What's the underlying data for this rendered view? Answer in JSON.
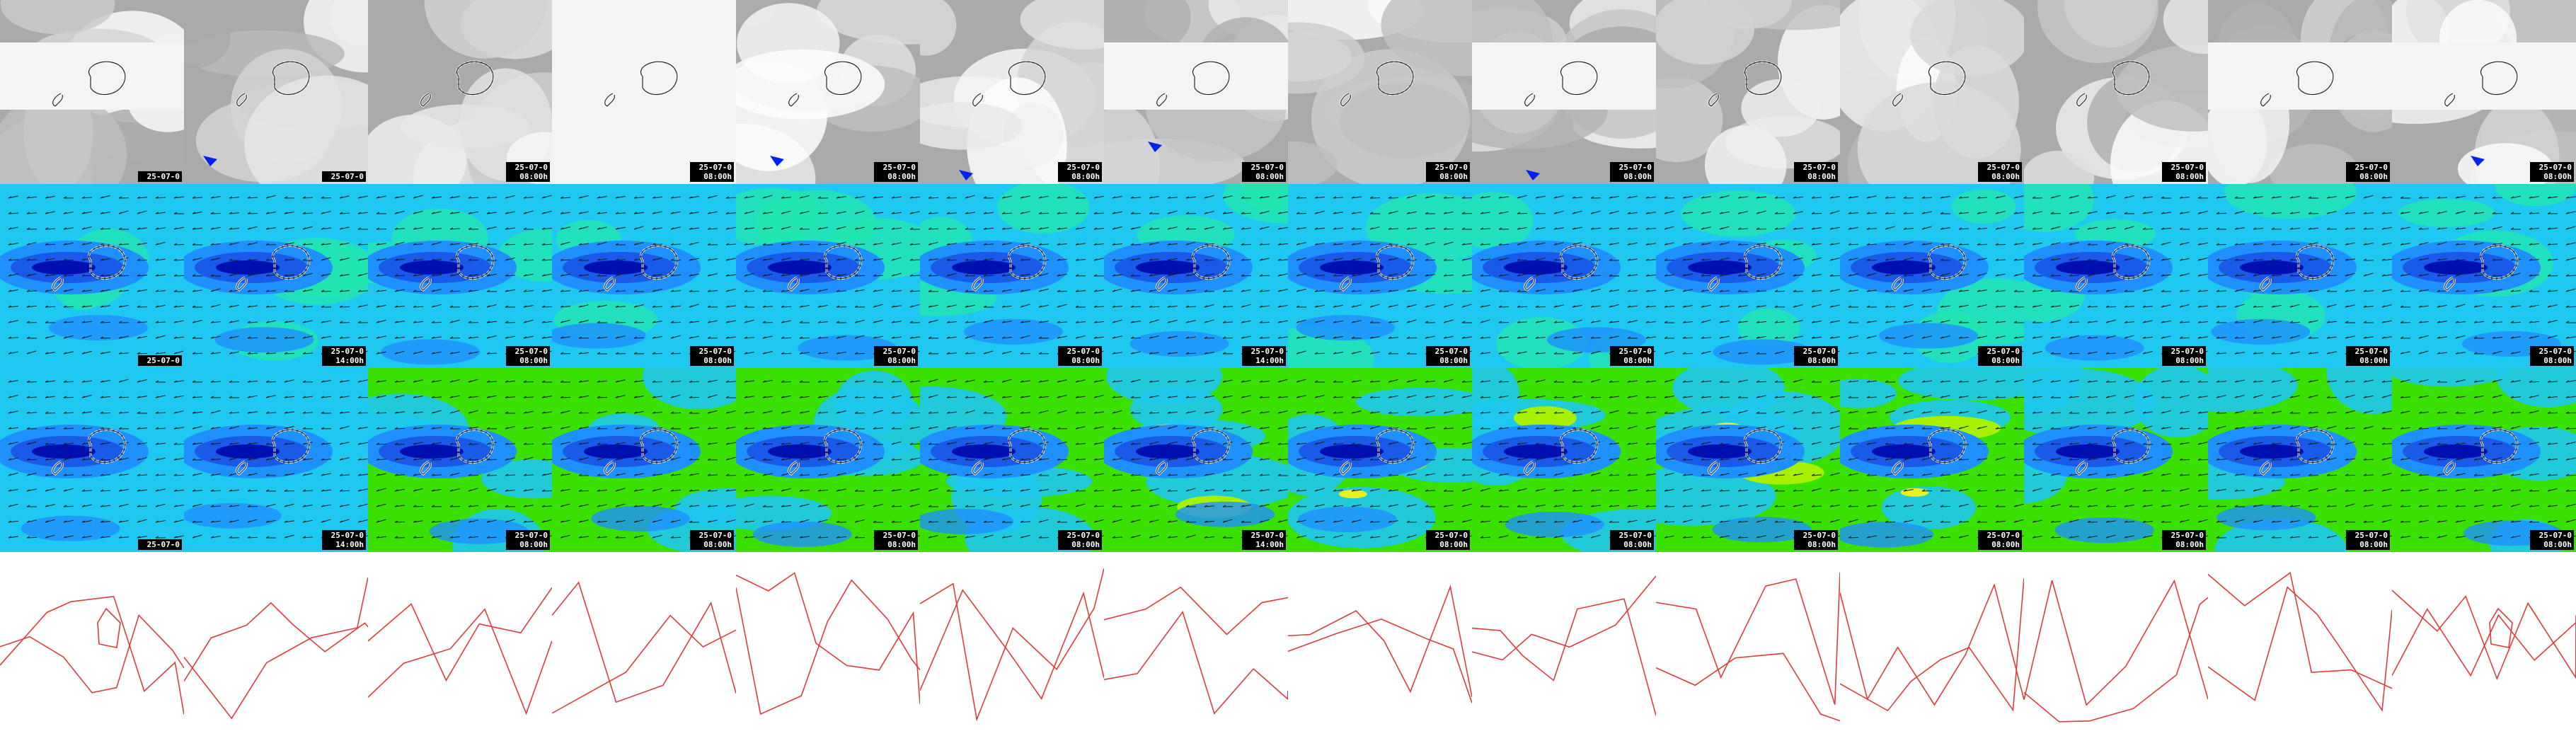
{
  "layout": {
    "rows": 4,
    "cols": 14
  },
  "rows": [
    {
      "layer": "cloud-cover",
      "times": [
        "25-07-0",
        "25-07-0",
        "25-07-0",
        "25-07-0",
        "25-07-0",
        "25-07-0",
        "25-07-0",
        "25-07-0",
        "25-07-0",
        "25-07-0",
        "25-07-0",
        "25-07-0",
        "25-07-0",
        "25-07-0"
      ],
      "hours": [
        "",
        "",
        "08:00h",
        "08:00h",
        "08:00h",
        "08:00h",
        "08:00h",
        "08:00h",
        "08:00h",
        "08:00h",
        "08:00h",
        "08:00h",
        "08:00h",
        "08:00h"
      ]
    },
    {
      "layer": "wind-speed",
      "times": [
        "25-07-0",
        "25-07-0",
        "25-07-0",
        "25-07-0",
        "25-07-0",
        "25-07-0",
        "25-07-0",
        "25-07-0",
        "25-07-0",
        "25-07-0",
        "25-07-0",
        "25-07-0",
        "25-07-0",
        "25-07-0"
      ],
      "hours": [
        "",
        "14:00h",
        "08:00h",
        "08:00h",
        "08:00h",
        "08:00h",
        "14:00h",
        "08:00h",
        "08:00h",
        "08:00h",
        "08:00h",
        "08:00h",
        "08:00h",
        "08:00h"
      ]
    },
    {
      "layer": "wind-gusts",
      "times": [
        "25-07-0",
        "25-07-0",
        "25-07-0",
        "25-07-0",
        "25-07-0",
        "25-07-0",
        "25-07-0",
        "25-07-0",
        "25-07-0",
        "25-07-0",
        "25-07-0",
        "25-07-0",
        "25-07-0",
        "25-07-0"
      ],
      "hours": [
        "",
        "14:00h",
        "08:00h",
        "08:00h",
        "08:00h",
        "08:00h",
        "14:00h",
        "08:00h",
        "08:00h",
        "08:00h",
        "08:00h",
        "08:00h",
        "08:00h",
        "08:00h"
      ]
    },
    {
      "layer": "isolines"
    }
  ],
  "colors": {
    "cloud_light": "#f4f4f4",
    "cloud_grey": "#aaaaaa",
    "cloud_blue": "#0022ee",
    "wind_dark": "#0010b0",
    "wind_mid": "#1a5ae8",
    "wind_blue": "#1e90ff",
    "wind_cyan": "#1ec8f0",
    "wind_aqua": "#20e6b0",
    "wind_green": "#30e050",
    "gust_green": "#39e000",
    "gust_lime": "#a6f000",
    "gust_yellow": "#e8f020",
    "isoline": "#e23b3b",
    "coast": "#ffffff"
  }
}
